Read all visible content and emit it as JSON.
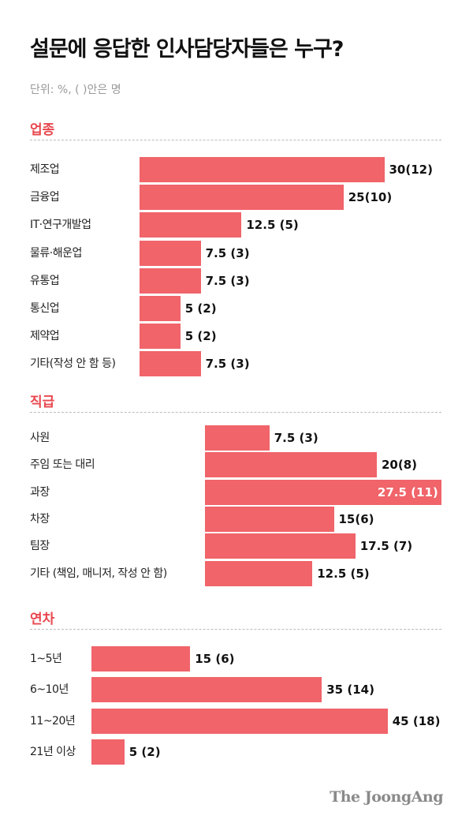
{
  "title": "설문에 응답한 인사담당자들은 누구?",
  "subtitle": "단위: %, ( )안은 명",
  "logo": "The JoongAng",
  "colors": {
    "bar": "#f0646a",
    "section_title": "#e8484f"
  },
  "chart_data": [
    {
      "type": "bar",
      "orientation": "horizontal",
      "title": "업종",
      "unit": "%",
      "categories": [
        "제조업",
        "금융업",
        "IT·연구개발업",
        "물류·해운업",
        "유통업",
        "통신업",
        "제약업",
        "기타(작성 안 함 등)"
      ],
      "values": [
        30,
        25,
        12.5,
        7.5,
        7.5,
        5,
        5,
        7.5
      ],
      "counts": [
        12,
        10,
        5,
        3,
        3,
        2,
        2,
        3
      ],
      "labels": [
        "30(12)",
        "25(10)",
        "12.5 (5)",
        "7.5 (3)",
        "7.5 (3)",
        "5 (2)",
        "5 (2)",
        "7.5 (3)"
      ]
    },
    {
      "type": "bar",
      "orientation": "horizontal",
      "title": "직급",
      "unit": "%",
      "categories": [
        "사원",
        "주임 또는 대리",
        "과장",
        "차장",
        "팀장",
        "기타 (책임, 매니저, 작성 안 함)"
      ],
      "values": [
        7.5,
        20,
        27.5,
        15,
        17.5,
        12.5
      ],
      "counts": [
        3,
        8,
        11,
        6,
        7,
        5
      ],
      "labels": [
        "7.5 (3)",
        "20(8)",
        "27.5 (11)",
        "15(6)",
        "17.5 (7)",
        "12.5 (5)"
      ]
    },
    {
      "type": "bar",
      "orientation": "horizontal",
      "title": "연차",
      "unit": "%",
      "categories": [
        "1~5년",
        "6~10년",
        "11~20년",
        "21년 이상"
      ],
      "values": [
        15,
        35,
        45,
        5
      ],
      "counts": [
        6,
        14,
        18,
        2
      ],
      "labels": [
        "15 (6)",
        "35 (14)",
        "45 (18)",
        "5 (2)"
      ]
    }
  ]
}
